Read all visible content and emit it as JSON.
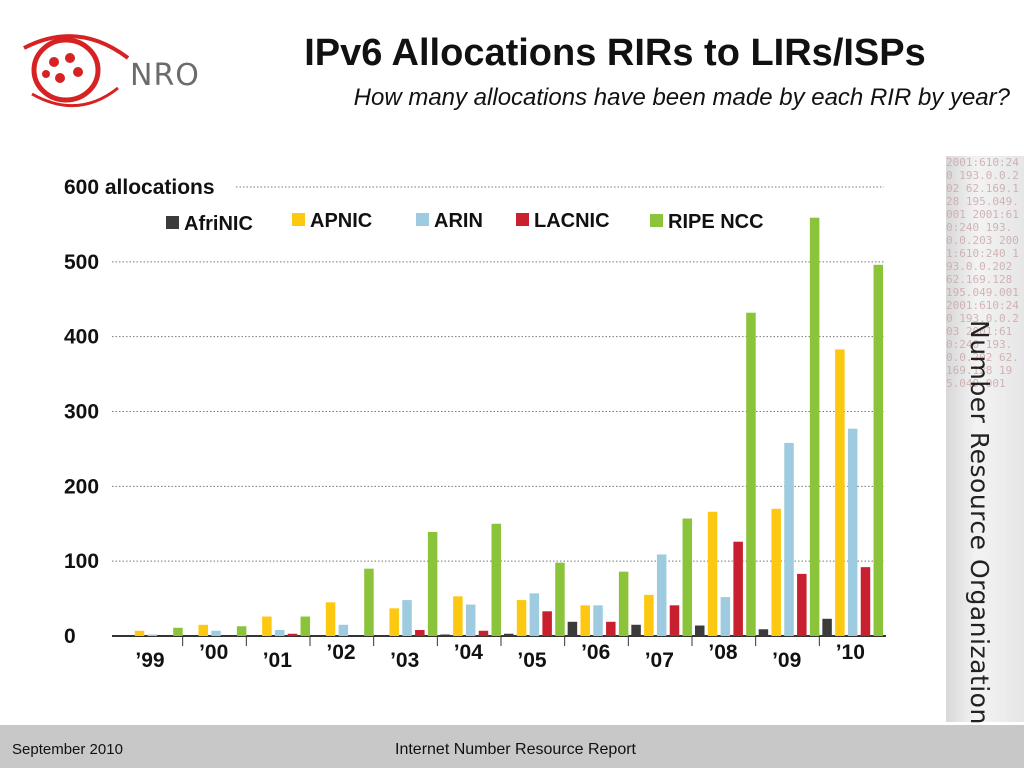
{
  "header": {
    "logo_text": "NRO",
    "title": "IPv6 Allocations RIRs to LIRs/ISPs",
    "subtitle": "How many allocations have been made by each RIR by year?"
  },
  "sidebar": {
    "label": "Number Resource Organization",
    "background_numbers": "2001:610:240 193.0.0.202 62.169.128 195.049.001 2001:610:240 193.0.0.203 2001:610:240 193.0.0.202 62.169.128 195.049.001 2001:610:240 193.0.0.203 2001:610:240 193.0.0.202 62.169.128 195.049.001"
  },
  "footer": {
    "date": "September 2010",
    "report": "Internet Number Resource Report"
  },
  "colors": {
    "AfriNIC": "#3b3b3b",
    "APNIC": "#fcc812",
    "ARIN": "#9ecbe0",
    "LACNIC": "#c8202f",
    "RIPE NCC": "#8bc33a",
    "brand_red": "#d62222"
  },
  "chart_data": {
    "type": "bar",
    "title": "",
    "ylabel": "",
    "xlabel": "",
    "ylim": [
      0,
      600
    ],
    "yticks": [
      0,
      100,
      200,
      300,
      400,
      500,
      600
    ],
    "ytick_labels": [
      "0",
      "100",
      "200",
      "300",
      "400",
      "500",
      "600 allocations"
    ],
    "grid": true,
    "legend_position": "top",
    "categories": [
      "'99",
      "'00",
      "'01",
      "'02",
      "'03",
      "'04",
      "'05",
      "'06",
      "'07",
      "'08",
      "'09",
      "'10"
    ],
    "series": [
      {
        "name": "AfriNIC",
        "values": [
          0,
          0,
          1,
          1,
          1,
          2,
          3,
          19,
          15,
          14,
          9,
          23
        ]
      },
      {
        "name": "APNIC",
        "values": [
          7,
          15,
          26,
          45,
          37,
          53,
          48,
          41,
          55,
          166,
          170,
          383
        ]
      },
      {
        "name": "ARIN",
        "values": [
          2,
          7,
          8,
          15,
          48,
          42,
          57,
          41,
          109,
          52,
          258,
          277
        ]
      },
      {
        "name": "LACNIC",
        "values": [
          0,
          0,
          3,
          0,
          8,
          7,
          33,
          19,
          41,
          126,
          83,
          92
        ]
      },
      {
        "name": "RIPE NCC",
        "values": [
          11,
          13,
          26,
          90,
          139,
          150,
          98,
          86,
          157,
          432,
          559,
          496
        ]
      }
    ]
  }
}
